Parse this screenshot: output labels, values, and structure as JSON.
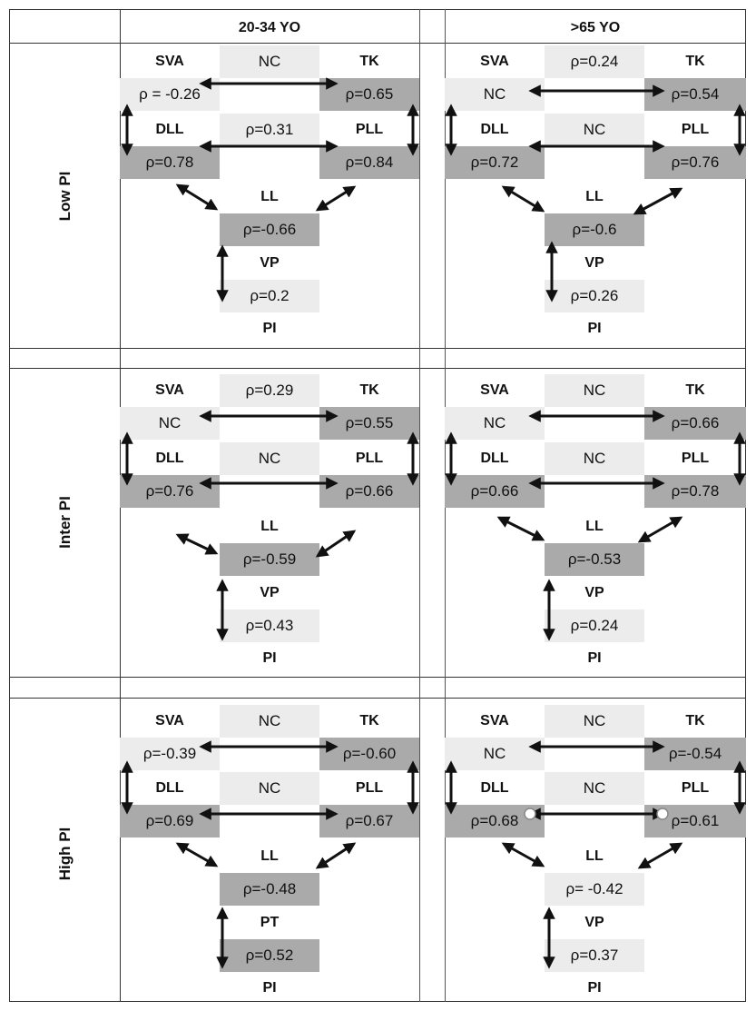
{
  "columns": [
    "20-34 YO",
    ">65 YO"
  ],
  "rows": [
    {
      "label": "Low PI",
      "panels": [
        {
          "sva": "SVA",
          "tk": "TK",
          "top": "NC",
          "left1": "ρ = -0.26",
          "right1": "ρ=0.65",
          "dll": "DLL",
          "pll": "PLL",
          "mid": "ρ=0.31",
          "left2": "ρ=0.78",
          "right2": "ρ=0.84",
          "ll": "LL",
          "center": "ρ=-0.66",
          "vp": "VP",
          "bottom": "ρ=0.2",
          "pi": "PI"
        },
        {
          "sva": "SVA",
          "tk": "TK",
          "top": "ρ=0.24",
          "left1": "NC",
          "right1": "ρ=0.54",
          "dll": "DLL",
          "pll": "PLL",
          "mid": "NC",
          "left2": "ρ=0.72",
          "right2": "ρ=0.76",
          "ll": "LL",
          "center": "ρ=-0.6",
          "vp": "VP",
          "bottom": "ρ=0.26",
          "pi": "PI"
        }
      ]
    },
    {
      "label": "Inter PI",
      "panels": [
        {
          "sva": "SVA",
          "tk": "TK",
          "top": "ρ=0.29",
          "left1": "NC",
          "right1": "ρ=0.55",
          "dll": "DLL",
          "pll": "PLL",
          "mid": "NC",
          "left2": "ρ=0.76",
          "right2": "ρ=0.66",
          "ll": "LL",
          "center": "ρ=-0.59",
          "vp": "VP",
          "bottom": "ρ=0.43",
          "pi": "PI"
        },
        {
          "sva": "SVA",
          "tk": "TK",
          "top": "NC",
          "left1": "NC",
          "right1": "ρ=0.66",
          "dll": "DLL",
          "pll": "PLL",
          "mid": "NC",
          "left2": "ρ=0.66",
          "right2": "ρ=0.78",
          "ll": "LL",
          "center": "ρ=-0.53",
          "vp": "VP",
          "bottom": "ρ=0.24",
          "pi": "PI"
        }
      ]
    },
    {
      "label": "High PI",
      "panels": [
        {
          "sva": "SVA",
          "tk": "TK",
          "top": "NC",
          "left1": "ρ=-0.39",
          "right1": "ρ=-0.60",
          "dll": "DLL",
          "pll": "PLL",
          "mid": "NC",
          "left2": "ρ=0.69",
          "right2": "ρ=0.67",
          "ll": "LL",
          "center": "ρ=-0.48",
          "vp": "PT",
          "bottom": "ρ=0.52",
          "pi": "PI"
        },
        {
          "sva": "SVA",
          "tk": "TK",
          "top": "NC",
          "left1": "NC",
          "right1": "ρ=-0.54",
          "dll": "DLL",
          "pll": "PLL",
          "mid": "NC",
          "left2": "ρ=0.68",
          "right2": "ρ=0.61",
          "ll": "LL",
          "center": "ρ= -0.42",
          "vp": "VP",
          "bottom": "ρ=0.37",
          "pi": "PI"
        }
      ]
    }
  ]
}
